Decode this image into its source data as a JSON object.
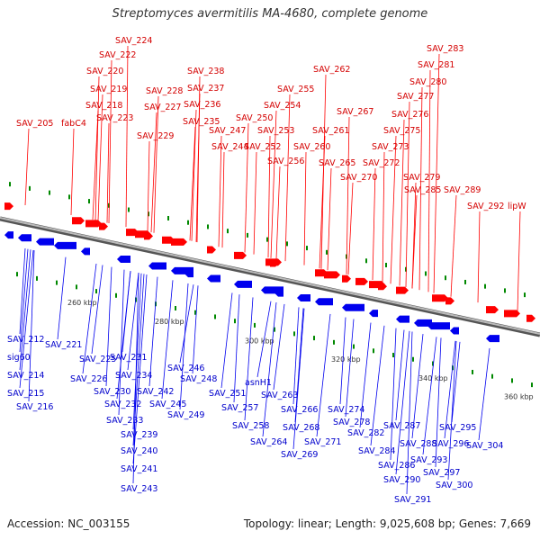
{
  "title": "Streptomyces avermitilis MA-4680, complete genome",
  "footer": {
    "accession": "Accession: NC_003155",
    "summary": "Topology: linear; Length: 9,025,608 bp; Genes: 7,669"
  },
  "colors": {
    "forward": "#ff0000",
    "reverse": "#0000ee",
    "backbone": "#999999",
    "marker": "#008800"
  },
  "ticks": [
    "260 kbp",
    "280 kbp",
    "300 kbp",
    "320 kbp",
    "340 kbp",
    "360 kbp"
  ],
  "forward_labels": [
    "SAV_224",
    "SAV_222",
    "SAV_220",
    "SAV_219",
    "SAV_218",
    "SAV_223",
    "fabC4",
    "SAV_205",
    "SAV_228",
    "SAV_227",
    "SAV_229",
    "SAV_238",
    "SAV_237",
    "SAV_236",
    "SAV_235",
    "SAV_244",
    "SAV_247",
    "SAV_250",
    "SAV_255",
    "SAV_254",
    "SAV_253",
    "SAV_252",
    "SAV_256",
    "SAV_262",
    "SAV_261",
    "SAV_260",
    "SAV_267",
    "SAV_265",
    "SAV_270",
    "SAV_283",
    "SAV_281",
    "SAV_280",
    "SAV_277",
    "SAV_276",
    "SAV_275",
    "SAV_273",
    "SAV_272",
    "SAV_279",
    "SAV_285",
    "SAV_289",
    "SAV_292",
    "lipW"
  ],
  "reverse_labels": [
    "SAV_212",
    "sig60",
    "SAV_214",
    "SAV_215",
    "SAV_216",
    "SAV_221",
    "SAV_225",
    "SAV_226",
    "SAV_230",
    "SAV_231",
    "SAV_234",
    "SAV_232",
    "SAV_233",
    "SAV_239",
    "SAV_240",
    "SAV_241",
    "SAV_243",
    "SAV_242",
    "SAV_245",
    "SAV_246",
    "SAV_248",
    "SAV_249",
    "SAV_251",
    "asnH1",
    "SAV_257",
    "SAV_258",
    "SAV_263",
    "SAV_264",
    "SAV_266",
    "SAV_268",
    "SAV_269",
    "SAV_271",
    "SAV_274",
    "SAV_278",
    "SAV_282",
    "SAV_284",
    "SAV_286",
    "SAV_287",
    "SAV_288",
    "SAV_290",
    "SAV_291",
    "SAV_295",
    "SAV_296",
    "SAV_293",
    "SAV_297",
    "SAV_300",
    "SAV_304"
  ]
}
